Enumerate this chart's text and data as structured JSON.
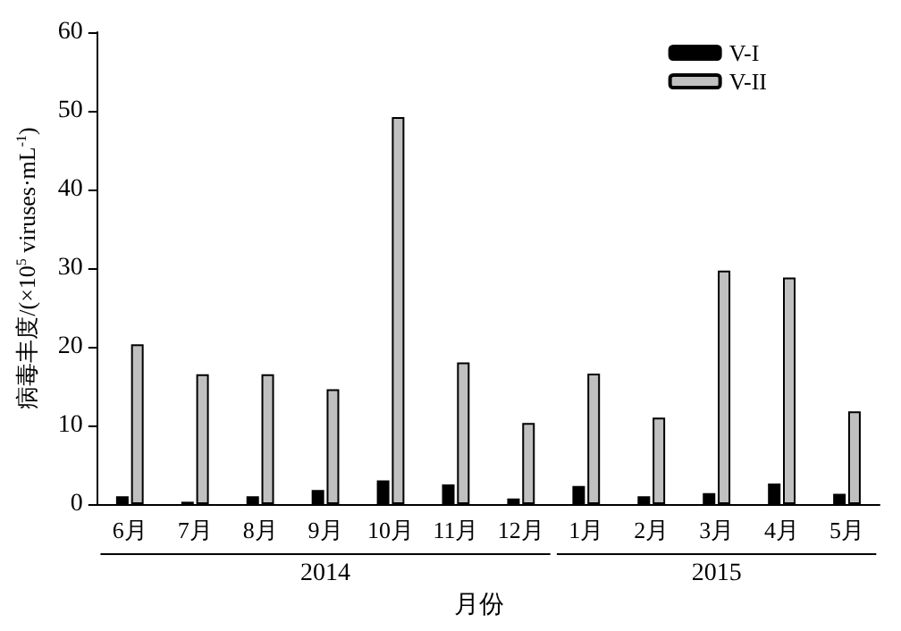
{
  "chart_data": {
    "type": "bar",
    "xlabel": "月份",
    "ylabel": "病毒丰度/(×10$^{5}$ viruses·mL$^{-1}$)",
    "categories": [
      "6月",
      "7月",
      "8月",
      "9月",
      "10月",
      "11月",
      "12月",
      "1月",
      "2月",
      "3月",
      "4月",
      "5月"
    ],
    "series": [
      {
        "name": "V-I",
        "color": "#000000",
        "values": [
          1.0,
          0.3,
          1.0,
          1.8,
          3.0,
          2.5,
          0.7,
          2.3,
          1.0,
          1.4,
          2.6,
          1.3
        ]
      },
      {
        "name": "V-II",
        "color": "#c0c0c0",
        "values": [
          20.3,
          16.5,
          16.5,
          14.6,
          49.2,
          18.0,
          10.3,
          16.6,
          11.0,
          29.7,
          28.8,
          11.8
        ]
      }
    ],
    "ylim": [
      0,
      60
    ],
    "yticks": [
      0,
      10,
      20,
      30,
      40,
      50,
      60
    ],
    "grid": false,
    "legend": "top right",
    "annotations": [
      "2014",
      "2015"
    ]
  }
}
